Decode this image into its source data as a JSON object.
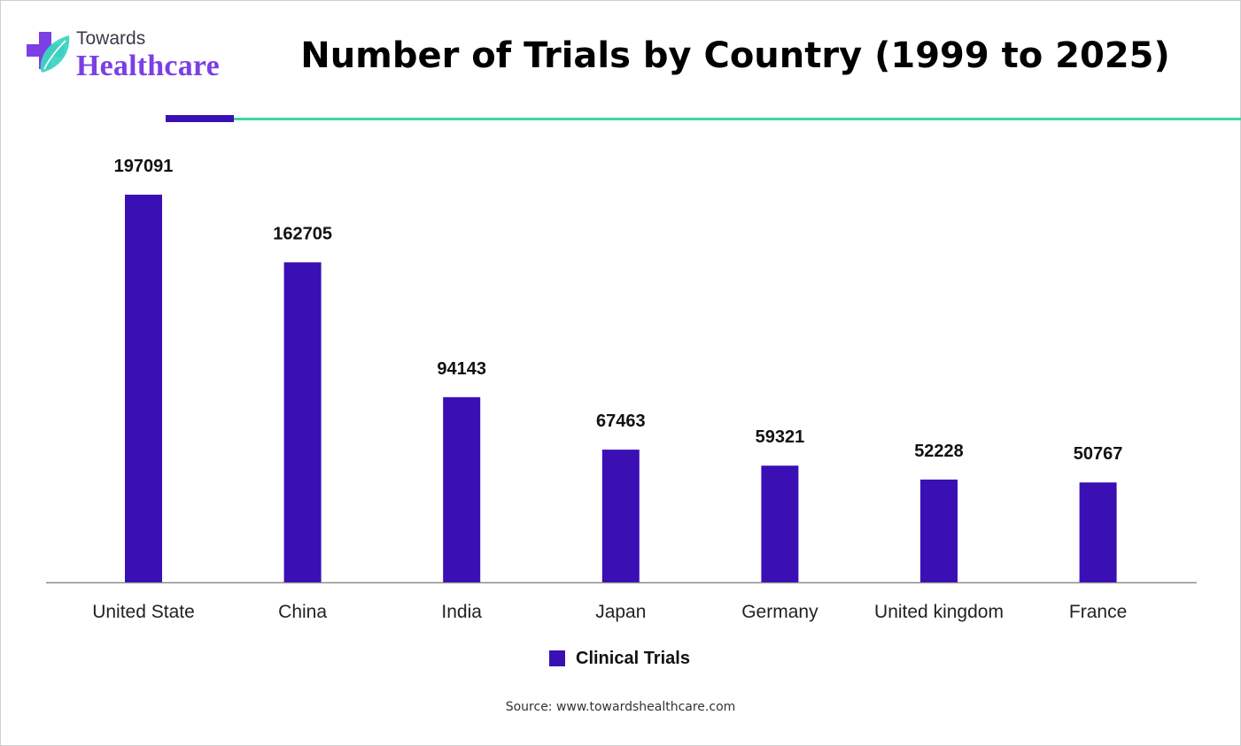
{
  "logo": {
    "top_text": "Towards",
    "brand_text": "Healthcare"
  },
  "title": "Number of Trials by Country (1999 to 2025)",
  "source": "Source: www.towardshealthcare.com",
  "colors": {
    "bar": "#3a10b5",
    "accent_rule": "#3a10b5",
    "teal_rule": "#3ed6a4",
    "brand_purple": "#7b3fe4"
  },
  "icons": {
    "logo_mark": "medical-cross-leaf-icon"
  },
  "chart_data": {
    "type": "bar",
    "title": "Number of Trials by Country (1999 to 2025)",
    "xlabel": "",
    "ylabel": "",
    "categories": [
      "United State",
      "China",
      "India",
      "Japan",
      "Germany",
      "United kingdom",
      "France"
    ],
    "series": [
      {
        "name": "Clinical Trials",
        "values": [
          197091,
          162705,
          94143,
          67463,
          59321,
          52228,
          50767
        ]
      }
    ],
    "data_labels": [
      "197091",
      "162705",
      "94143",
      "67463",
      "59321",
      "52228",
      "50767"
    ],
    "legend": {
      "position": "bottom",
      "entries": [
        "Clinical Trials"
      ]
    },
    "grid": false,
    "y_axis_visible": false,
    "ylim": [
      0,
      197091
    ]
  }
}
